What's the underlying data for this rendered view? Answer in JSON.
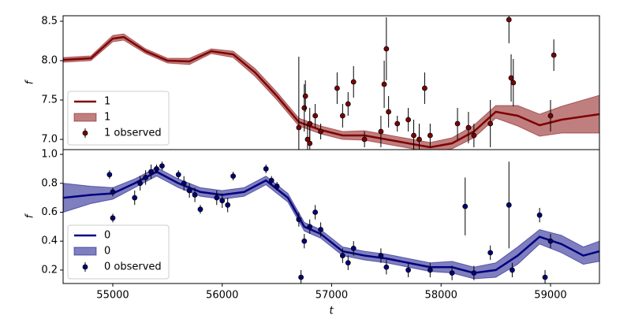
{
  "chart_data": [
    {
      "type": "line",
      "ylabel": "f",
      "xlim": [
        54546,
        59447
      ],
      "ylim": [
        6.87,
        8.57
      ],
      "yticks": [
        {
          "value": 7.0,
          "label": "7.0"
        },
        7.5,
        {
          "value": 8.0,
          "label": "8.0"
        },
        8.5
      ],
      "legend": "lower left",
      "series": [
        {
          "name": "1",
          "color": "#800000",
          "x": [
            54550,
            54800,
            55000,
            55100,
            55300,
            55500,
            55700,
            55900,
            56100,
            56300,
            56500,
            56700,
            56900,
            57100,
            57300,
            57500,
            57700,
            57900,
            58100,
            58300,
            58500,
            58700,
            58900,
            59100,
            59447
          ],
          "values": [
            8.01,
            8.03,
            8.28,
            8.3,
            8.12,
            8.0,
            7.99,
            8.12,
            8.08,
            7.85,
            7.55,
            7.22,
            7.12,
            7.05,
            7.05,
            7.0,
            6.95,
            6.9,
            6.95,
            7.1,
            7.35,
            7.3,
            7.18,
            7.25,
            7.32
          ]
        }
      ],
      "band": {
        "name": "1",
        "color": "#800000",
        "lower": [
          7.98,
          8.0,
          8.24,
          8.26,
          8.09,
          7.97,
          7.95,
          8.09,
          8.04,
          7.8,
          7.5,
          7.17,
          7.07,
          7.0,
          6.99,
          6.94,
          6.89,
          6.84,
          6.88,
          7.02,
          7.27,
          7.17,
          7.04,
          7.08,
          7.08
        ],
        "upper": [
          8.04,
          8.06,
          8.32,
          8.34,
          8.15,
          8.03,
          8.03,
          8.15,
          8.12,
          7.9,
          7.6,
          7.27,
          7.17,
          7.1,
          7.11,
          7.06,
          7.01,
          6.96,
          7.02,
          7.18,
          7.43,
          7.43,
          7.32,
          7.42,
          7.56
        ]
      },
      "observed": {
        "name": "1 observed",
        "color": "#800000",
        "x": [
          56700,
          56750,
          56760,
          56780,
          56800,
          56800,
          56850,
          56900,
          57050,
          57100,
          57150,
          57200,
          57300,
          57450,
          57480,
          57500,
          57520,
          57600,
          57700,
          57750,
          57800,
          57850,
          57900,
          58150,
          58250,
          58300,
          58450,
          58620,
          58640,
          58660,
          59000,
          59030
        ],
        "values": [
          7.15,
          7.4,
          7.55,
          7.0,
          7.2,
          6.95,
          7.3,
          7.1,
          7.65,
          7.3,
          7.45,
          7.73,
          7.0,
          7.1,
          7.7,
          8.15,
          7.35,
          7.2,
          7.25,
          7.05,
          7.0,
          7.65,
          7.05,
          7.2,
          7.15,
          7.05,
          7.2,
          8.52,
          7.78,
          7.72,
          7.3,
          8.07
        ],
        "errors": [
          0.9,
          0.3,
          0.2,
          0.2,
          0.2,
          0.2,
          0.15,
          0.1,
          0.2,
          0.15,
          0.15,
          0.2,
          0.1,
          0.2,
          0.3,
          0.4,
          0.2,
          0.1,
          0.15,
          0.2,
          0.2,
          0.2,
          0.15,
          0.2,
          0.2,
          0.15,
          0.3,
          0.3,
          0.3,
          0.3,
          0.2,
          0.2
        ]
      }
    },
    {
      "type": "line",
      "ylabel": "f",
      "xlabel": "t",
      "xlim": [
        54546,
        59447
      ],
      "ylim": [
        0.107,
        1.033
      ],
      "xticks": [
        55000,
        56000,
        57000,
        58000,
        59000
      ],
      "yticks": [
        0.2,
        0.4,
        0.6,
        0.8,
        {
          "value": 1.0,
          "label": "1.0"
        }
      ],
      "legend": "lower left",
      "series": [
        {
          "name": "0",
          "color": "#000080",
          "x": [
            54550,
            54800,
            55000,
            55200,
            55400,
            55600,
            55800,
            56000,
            56200,
            56400,
            56600,
            56750,
            56900,
            57100,
            57300,
            57500,
            57700,
            57900,
            58100,
            58300,
            58500,
            58700,
            58900,
            59100,
            59300,
            59447
          ],
          "values": [
            0.7,
            0.72,
            0.73,
            0.8,
            0.88,
            0.8,
            0.74,
            0.72,
            0.74,
            0.82,
            0.7,
            0.5,
            0.45,
            0.33,
            0.3,
            0.28,
            0.25,
            0.22,
            0.22,
            0.18,
            0.2,
            0.3,
            0.43,
            0.38,
            0.3,
            0.33
          ]
        }
      ],
      "band": {
        "name": "0",
        "color": "#000080",
        "lower": [
          0.6,
          0.66,
          0.69,
          0.77,
          0.85,
          0.77,
          0.71,
          0.69,
          0.71,
          0.79,
          0.67,
          0.47,
          0.42,
          0.3,
          0.27,
          0.25,
          0.22,
          0.19,
          0.18,
          0.14,
          0.15,
          0.24,
          0.38,
          0.32,
          0.24,
          0.26
        ],
        "upper": [
          0.8,
          0.78,
          0.77,
          0.83,
          0.91,
          0.83,
          0.77,
          0.75,
          0.77,
          0.85,
          0.73,
          0.53,
          0.48,
          0.36,
          0.33,
          0.31,
          0.28,
          0.25,
          0.26,
          0.22,
          0.25,
          0.36,
          0.48,
          0.44,
          0.36,
          0.4
        ]
      },
      "observed": {
        "name": "0 observed",
        "color": "#000080",
        "x": [
          54970,
          55000,
          55000,
          55200,
          55250,
          55300,
          55350,
          55400,
          55450,
          55600,
          55650,
          55700,
          55750,
          55800,
          55950,
          56000,
          56050,
          56100,
          56400,
          56450,
          56500,
          56700,
          56720,
          56750,
          56800,
          56850,
          56900,
          57100,
          57150,
          57200,
          57450,
          57500,
          57700,
          57900,
          58100,
          58220,
          58300,
          58450,
          58620,
          58650,
          58900,
          58950,
          59000
        ],
        "values": [
          0.86,
          0.56,
          0.74,
          0.7,
          0.8,
          0.84,
          0.88,
          0.9,
          0.92,
          0.86,
          0.8,
          0.75,
          0.72,
          0.62,
          0.7,
          0.68,
          0.65,
          0.85,
          0.9,
          0.82,
          0.78,
          0.55,
          0.15,
          0.4,
          0.5,
          0.6,
          0.48,
          0.3,
          0.25,
          0.35,
          0.3,
          0.22,
          0.2,
          0.2,
          0.18,
          0.64,
          0.18,
          0.32,
          0.65,
          0.2,
          0.58,
          0.15,
          0.4
        ],
        "errors": [
          0.03,
          0.03,
          0.03,
          0.05,
          0.05,
          0.05,
          0.05,
          0.03,
          0.03,
          0.03,
          0.05,
          0.05,
          0.05,
          0.03,
          0.05,
          0.05,
          0.05,
          0.03,
          0.03,
          0.03,
          0.03,
          0.05,
          0.05,
          0.05,
          0.05,
          0.05,
          0.05,
          0.05,
          0.05,
          0.05,
          0.05,
          0.05,
          0.05,
          0.05,
          0.05,
          0.2,
          0.05,
          0.05,
          0.3,
          0.05,
          0.05,
          0.05,
          0.05
        ]
      }
    }
  ]
}
